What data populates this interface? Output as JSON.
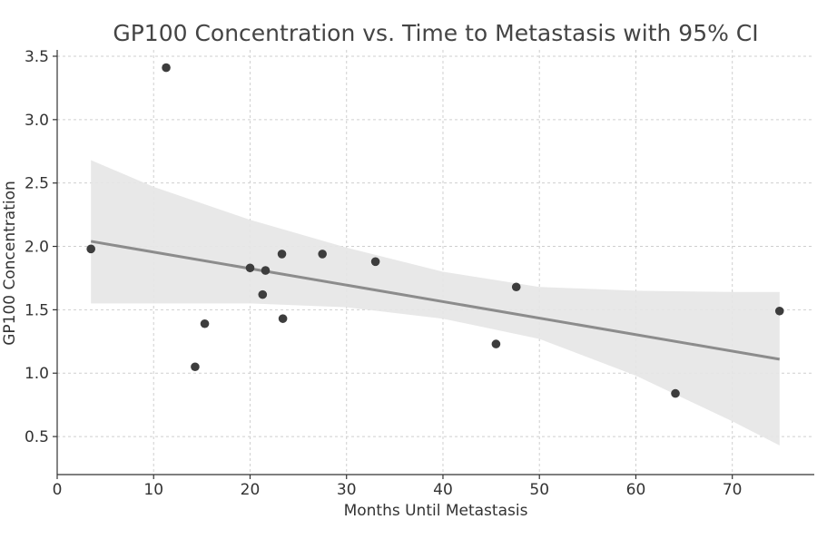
{
  "chart_data": {
    "type": "scatter",
    "title": "GP100 Concentration vs. Time to Metastasis with 95% CI",
    "xlabel": "Months Until Metastasis",
    "ylabel": "GP100 Concentration",
    "xlim": [
      0,
      78.5
    ],
    "ylim": [
      0.2,
      3.55
    ],
    "xticks": [
      0,
      10,
      20,
      30,
      40,
      50,
      60,
      70
    ],
    "yticks": [
      0.5,
      1.0,
      1.5,
      2.0,
      2.5,
      3.0,
      3.5
    ],
    "xtick_labels": [
      "0",
      "10",
      "20",
      "30",
      "40",
      "50",
      "60",
      "70"
    ],
    "ytick_labels": [
      "0.5",
      "1.0",
      "1.5",
      "2.0",
      "2.5",
      "3.0",
      "3.5"
    ],
    "grid": true,
    "points": [
      {
        "x": 3.5,
        "y": 1.98
      },
      {
        "x": 11.3,
        "y": 3.41
      },
      {
        "x": 14.3,
        "y": 1.05
      },
      {
        "x": 15.3,
        "y": 1.39
      },
      {
        "x": 20.0,
        "y": 1.83
      },
      {
        "x": 21.3,
        "y": 1.62
      },
      {
        "x": 21.6,
        "y": 1.81
      },
      {
        "x": 23.3,
        "y": 1.94
      },
      {
        "x": 23.4,
        "y": 1.43
      },
      {
        "x": 27.5,
        "y": 1.94
      },
      {
        "x": 33.0,
        "y": 1.88
      },
      {
        "x": 45.5,
        "y": 1.23
      },
      {
        "x": 47.6,
        "y": 1.68
      },
      {
        "x": 64.1,
        "y": 0.84
      },
      {
        "x": 74.9,
        "y": 1.49
      }
    ],
    "regression_line": {
      "x": [
        3.5,
        74.9
      ],
      "y": [
        2.04,
        1.11
      ]
    },
    "confidence_band": {
      "x": [
        3.5,
        10,
        20,
        30,
        40,
        50,
        60,
        70,
        74.9
      ],
      "upper": [
        2.68,
        2.47,
        2.21,
        1.99,
        1.8,
        1.68,
        1.65,
        1.64,
        1.64
      ],
      "lower": [
        1.55,
        1.55,
        1.55,
        1.52,
        1.43,
        1.27,
        0.98,
        0.62,
        0.43
      ]
    },
    "colors": {
      "points": "#3d3d3d",
      "line": "#8c8c8c",
      "band": "#e6e6e6"
    }
  }
}
